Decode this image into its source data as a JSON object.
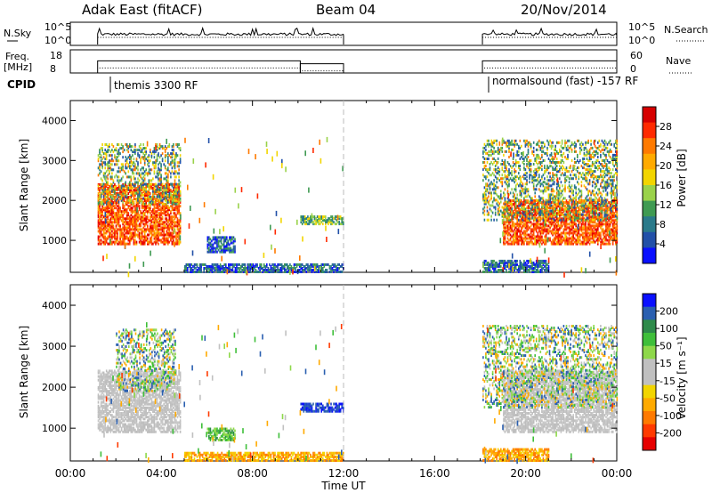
{
  "header": {
    "site": "Adak East (fitACF)",
    "beam": "Beam 04",
    "date": "20/Nov/2014"
  },
  "chart_data": [
    {
      "type": "line",
      "name_label": "N.Sky",
      "right_label": "N.Search",
      "left_ticks": [
        "10^5",
        "10^0"
      ],
      "right_ticks": [
        "10^5",
        "10^0"
      ],
      "x_range": [
        "00:00",
        "24:00"
      ],
      "segments": [
        {
          "start": 1.2,
          "end": 12.0
        },
        {
          "start": 18.1,
          "end": 24.0
        }
      ]
    },
    {
      "type": "line",
      "name_label": "Freq. [MHz]",
      "right_label": "Nave",
      "left_ticks": [
        "18",
        "8"
      ],
      "right_ticks": [
        "60",
        "0"
      ],
      "freq_segments": [
        {
          "start": 1.2,
          "end": 10.1,
          "value": 14.8
        },
        {
          "start": 10.1,
          "end": 12.0,
          "value": 13.2
        },
        {
          "start": 18.1,
          "end": 24.0,
          "value": 14.8
        }
      ]
    },
    {
      "type": "table",
      "label": "CPID",
      "programs": [
        {
          "start": 1.2,
          "text": "themis 3300 RF"
        },
        {
          "start": 18.1,
          "text": "normalsound (fast) -157 RF"
        }
      ]
    },
    {
      "type": "heatmap",
      "quantity": "power",
      "ylabel": "Slant Range [km]",
      "yticks": [
        1000,
        2000,
        3000,
        4000
      ],
      "ylim": [
        200,
        4500
      ],
      "xlim": [
        0,
        24
      ],
      "colorbar": {
        "label": "Power [dB]",
        "ticks": [
          "28",
          "24",
          "20",
          "16",
          "12",
          "8",
          "4"
        ],
        "colors": [
          "#d60000",
          "#ff2a00",
          "#ff7a00",
          "#ffaa00",
          "#f2d500",
          "#9ad24a",
          "#3f9a52",
          "#2a7a8a",
          "#2250a8",
          "#0a10ff"
        ]
      },
      "regions": [
        {
          "t0": 1.2,
          "t1": 4.8,
          "r0": 900,
          "r1": 2400,
          "level": "high"
        },
        {
          "t0": 1.2,
          "t1": 4.8,
          "r0": 1900,
          "r1": 3400,
          "level": "mid"
        },
        {
          "t0": 6.0,
          "t1": 7.2,
          "r0": 700,
          "r1": 1100,
          "level": "low"
        },
        {
          "t0": 10.1,
          "t1": 12.0,
          "r0": 1400,
          "r1": 1600,
          "level": "mixed"
        },
        {
          "t0": 19.0,
          "t1": 24.0,
          "r0": 900,
          "r1": 2000,
          "level": "high"
        },
        {
          "t0": 18.1,
          "t1": 24.0,
          "r0": 1500,
          "r1": 3500,
          "level": "mid"
        },
        {
          "t0": 5.0,
          "t1": 12.0,
          "r0": 200,
          "r1": 400,
          "level": "low"
        },
        {
          "t0": 18.1,
          "t1": 21.0,
          "r0": 200,
          "r1": 500,
          "level": "low"
        }
      ]
    },
    {
      "type": "heatmap",
      "quantity": "velocity",
      "ylabel": "Slant Range [km]",
      "xlabel": "Time UT",
      "xticks": [
        "00:00",
        "04:00",
        "08:00",
        "12:00",
        "16:00",
        "20:00",
        "00:00"
      ],
      "yticks": [
        1000,
        2000,
        3000,
        4000
      ],
      "ylim": [
        200,
        4500
      ],
      "xlim": [
        0,
        24
      ],
      "colorbar": {
        "label": "Velocity [m s⁻¹]",
        "ticks": [
          "200",
          "100",
          "50",
          "15",
          "-15",
          "-50",
          "-100",
          "-200"
        ],
        "colors": [
          "#0a10ff",
          "#2a5fb0",
          "#2e8a4a",
          "#3fbf3a",
          "#8ed84a",
          "#c0c0c0",
          "#c0c0c0",
          "#f2d500",
          "#ffaa00",
          "#ff7a00",
          "#ff3a00",
          "#e60000"
        ]
      },
      "regions": [
        {
          "t0": 1.2,
          "t1": 4.8,
          "r0": 900,
          "r1": 2400,
          "level": "gray"
        },
        {
          "t0": 2.0,
          "t1": 4.6,
          "r0": 1900,
          "r1": 3400,
          "level": "scatter"
        },
        {
          "t0": 6.0,
          "t1": 7.2,
          "r0": 700,
          "r1": 1000,
          "level": "green"
        },
        {
          "t0": 10.1,
          "t1": 12.0,
          "r0": 1400,
          "r1": 1600,
          "level": "blue"
        },
        {
          "t0": 19.0,
          "t1": 24.0,
          "r0": 900,
          "r1": 2400,
          "level": "gray"
        },
        {
          "t0": 18.1,
          "t1": 24.0,
          "r0": 1500,
          "r1": 3500,
          "level": "scatter"
        },
        {
          "t0": 5.0,
          "t1": 12.0,
          "r0": 200,
          "r1": 400,
          "level": "orange"
        },
        {
          "t0": 18.1,
          "t1": 21.0,
          "r0": 200,
          "r1": 500,
          "level": "orange"
        }
      ]
    }
  ]
}
